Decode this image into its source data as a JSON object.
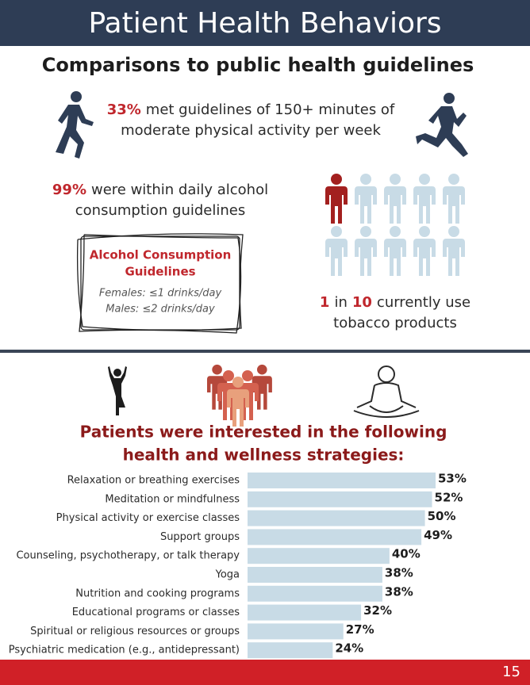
{
  "header": {
    "title": "Patient Health Behaviors",
    "subtitle": "Comparisons to public health guidelines"
  },
  "physical_activity": {
    "highlight": "33%",
    "line1": "met guidelines of 150+ minutes of",
    "line2": "moderate physical activity per week"
  },
  "alcohol": {
    "highlight": "99%",
    "line1": "were within daily alcohol",
    "line2": "consumption guidelines",
    "box": {
      "title_line1": "Alcohol Consumption",
      "title_line2": "Guidelines",
      "females": "Females: ≤1 drinks/day",
      "males": "Males: ≤2 drinks/day"
    }
  },
  "tobacco": {
    "count": "1",
    "middle": "in",
    "total": "10",
    "line1": "currently use",
    "line2": "tobacco products"
  },
  "chart_data": {
    "type": "bar",
    "orientation": "horizontal",
    "title_line1": "Patients were interested in the following",
    "title_line2": "health and wellness strategies:",
    "categories": [
      "Relaxation or breathing exercises",
      "Meditation or mindfulness",
      "Physical activity or exercise classes",
      "Support groups",
      "Counseling, psychotherapy, or talk therapy",
      "Yoga",
      "Nutrition and cooking programs",
      "Educational programs or classes",
      "Spiritual or religious resources or groups",
      "Psychiatric medication (e.g., antidepressant)"
    ],
    "values": [
      53,
      52,
      50,
      49,
      40,
      38,
      38,
      32,
      27,
      24
    ],
    "value_labels": [
      "53%",
      "52%",
      "50%",
      "49%",
      "40%",
      "38%",
      "38%",
      "32%",
      "27%",
      "24%"
    ],
    "color": "#c8dbe6"
  },
  "footer": {
    "page": "15"
  }
}
